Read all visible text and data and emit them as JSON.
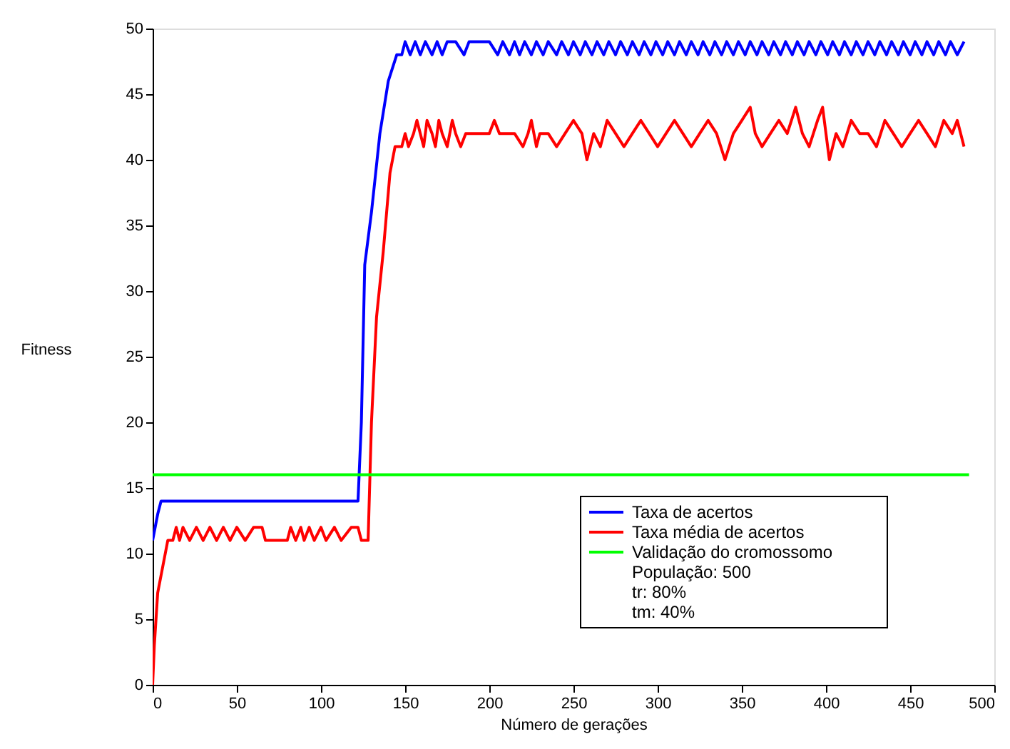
{
  "chart_data": {
    "type": "line",
    "xlabel": "Número de gerações",
    "ylabel": "Fitness",
    "xlim": [
      0,
      500
    ],
    "ylim": [
      0,
      50
    ],
    "xticks": [
      0,
      50,
      100,
      150,
      200,
      250,
      300,
      350,
      400,
      450,
      500
    ],
    "yticks": [
      0,
      5,
      10,
      15,
      20,
      25,
      30,
      35,
      40,
      45,
      50
    ],
    "grid": false,
    "legend": "bottom right",
    "line_style": "solid",
    "marker": "none",
    "series": [
      {
        "name": "Taxa de acertos",
        "color": "#0000ff",
        "x": [
          0,
          3,
          5,
          122,
          124,
          126,
          130,
          135,
          140,
          145,
          148,
          150,
          153,
          156,
          159,
          162,
          166,
          169,
          172,
          175,
          180,
          185,
          188,
          200,
          205,
          208,
          212,
          215,
          218,
          221,
          225,
          228,
          232,
          235,
          240,
          243,
          247,
          250,
          254,
          257,
          261,
          264,
          268,
          271,
          275,
          278,
          282,
          285,
          289,
          292,
          296,
          299,
          303,
          306,
          310,
          313,
          317,
          320,
          324,
          327,
          331,
          334,
          338,
          341,
          345,
          348,
          352,
          355,
          359,
          362,
          366,
          369,
          373,
          376,
          380,
          383,
          387,
          390,
          394,
          397,
          401,
          404,
          408,
          411,
          415,
          418,
          422,
          425,
          429,
          432,
          436,
          439,
          443,
          446,
          450,
          453,
          457,
          460,
          464,
          467,
          471,
          474,
          478,
          482
        ],
        "values": [
          11,
          13,
          14,
          14,
          20,
          32,
          36,
          42,
          46,
          48,
          48,
          49,
          48,
          49,
          48,
          49,
          48,
          49,
          48,
          49,
          49,
          48,
          49,
          49,
          48,
          49,
          48,
          49,
          48,
          49,
          48,
          49,
          48,
          49,
          48,
          49,
          48,
          49,
          48,
          49,
          48,
          49,
          48,
          49,
          48,
          49,
          48,
          49,
          48,
          49,
          48,
          49,
          48,
          49,
          48,
          49,
          48,
          49,
          48,
          49,
          48,
          49,
          48,
          49,
          48,
          49,
          48,
          49,
          48,
          49,
          48,
          49,
          48,
          49,
          48,
          49,
          48,
          49,
          48,
          49,
          48,
          49,
          48,
          49,
          48,
          49,
          48,
          49,
          48,
          49,
          48,
          49,
          48,
          49,
          48,
          49,
          48,
          49,
          48,
          49,
          48,
          49,
          48,
          49
        ]
      },
      {
        "name": "Taxa média de acertos",
        "color": "#ff0000",
        "x": [
          0,
          1,
          3,
          6,
          9,
          12,
          14,
          16,
          18,
          22,
          26,
          30,
          34,
          38,
          42,
          46,
          50,
          55,
          60,
          65,
          67,
          80,
          82,
          85,
          88,
          90,
          93,
          96,
          100,
          103,
          108,
          112,
          118,
          122,
          124,
          128,
          130,
          133,
          137,
          141,
          144,
          148,
          150,
          152,
          155,
          157,
          159,
          161,
          163,
          166,
          168,
          170,
          172,
          175,
          178,
          180,
          183,
          186,
          190,
          200,
          203,
          206,
          210,
          215,
          220,
          223,
          225,
          228,
          230,
          235,
          240,
          245,
          250,
          255,
          258,
          262,
          266,
          270,
          275,
          280,
          285,
          290,
          295,
          300,
          305,
          310,
          315,
          320,
          325,
          330,
          335,
          340,
          345,
          350,
          355,
          358,
          362,
          367,
          372,
          377,
          382,
          386,
          390,
          395,
          398,
          402,
          406,
          410,
          415,
          420,
          425,
          430,
          435,
          440,
          445,
          450,
          455,
          460,
          465,
          470,
          475,
          478,
          482
        ],
        "values": [
          0,
          3,
          7,
          9,
          11,
          11,
          12,
          11,
          12,
          11,
          12,
          11,
          12,
          11,
          12,
          11,
          12,
          11,
          12,
          12,
          11,
          11,
          12,
          11,
          12,
          11,
          12,
          11,
          12,
          11,
          12,
          11,
          12,
          12,
          11,
          11,
          20,
          28,
          33,
          39,
          41,
          41,
          42,
          41,
          42,
          43,
          42,
          41,
          43,
          42,
          41,
          43,
          42,
          41,
          43,
          42,
          41,
          42,
          42,
          42,
          43,
          42,
          42,
          42,
          41,
          42,
          43,
          41,
          42,
          42,
          41,
          42,
          43,
          42,
          40,
          42,
          41,
          43,
          42,
          41,
          42,
          43,
          42,
          41,
          42,
          43,
          42,
          41,
          42,
          43,
          42,
          40,
          42,
          43,
          44,
          42,
          41,
          42,
          43,
          42,
          44,
          42,
          41,
          43,
          44,
          40,
          42,
          41,
          43,
          42,
          42,
          41,
          43,
          42,
          41,
          42,
          43,
          42,
          41,
          43,
          42,
          43,
          41
        ]
      },
      {
        "name": "Validação do cromossomo",
        "color": "#00ff00",
        "x": [
          0,
          485
        ],
        "values": [
          16,
          16
        ]
      }
    ],
    "annotations": [
      "População: 500",
      "tr: 80%",
      "tm: 40%"
    ]
  }
}
